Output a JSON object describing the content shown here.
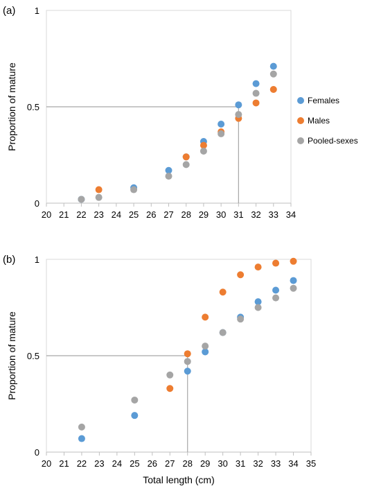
{
  "chart_data": [
    {
      "type": "scatter",
      "panel_label": "(a)",
      "xlabel": "",
      "ylabel": "Proportion of mature",
      "xlim": [
        20,
        34
      ],
      "ylim": [
        0,
        1
      ],
      "x_ticks": [
        20,
        21,
        22,
        23,
        24,
        25,
        26,
        27,
        28,
        29,
        30,
        31,
        32,
        33,
        34
      ],
      "y_ticks": [
        0,
        0.5,
        1
      ],
      "y_tick_labels": [
        "0",
        "0.5",
        "1"
      ],
      "grid": false,
      "legend": {
        "position": "right",
        "entries": [
          "Females",
          "Males",
          "Pooled-sexes"
        ]
      },
      "reference_lines": {
        "y": 0.5,
        "x": 31
      },
      "series": [
        {
          "name": "Females",
          "color": "#5B9BD5",
          "x": [
            22,
            25,
            27,
            28,
            29,
            30,
            31,
            32,
            33
          ],
          "y": [
            0.02,
            0.08,
            0.17,
            0.24,
            0.32,
            0.41,
            0.51,
            0.62,
            0.71
          ]
        },
        {
          "name": "Males",
          "color": "#ED7D31",
          "x": [
            23,
            28,
            29,
            30,
            31,
            32,
            33
          ],
          "y": [
            0.07,
            0.24,
            0.3,
            0.37,
            0.44,
            0.52,
            0.59
          ]
        },
        {
          "name": "Pooled-sexes",
          "color": "#A5A5A5",
          "x": [
            22,
            23,
            25,
            27,
            28,
            29,
            30,
            31,
            32,
            33
          ],
          "y": [
            0.02,
            0.03,
            0.07,
            0.14,
            0.2,
            0.27,
            0.36,
            0.46,
            0.57,
            0.67
          ]
        }
      ]
    },
    {
      "type": "scatter",
      "panel_label": "(b)",
      "xlabel": "Total length (cm)",
      "ylabel": "Proportion of mature",
      "xlim": [
        20,
        35
      ],
      "ylim": [
        0,
        1
      ],
      "x_ticks": [
        20,
        21,
        22,
        23,
        24,
        25,
        26,
        27,
        28,
        29,
        30,
        31,
        32,
        33,
        34,
        35
      ],
      "y_ticks": [
        0,
        0.5,
        1
      ],
      "y_tick_labels": [
        "0",
        "0.5",
        "1"
      ],
      "grid": false,
      "legend": null,
      "reference_lines": {
        "y": 0.5,
        "x": 28
      },
      "series": [
        {
          "name": "Females",
          "color": "#5B9BD5",
          "x": [
            22,
            25,
            28,
            29,
            30,
            31,
            32,
            33,
            34
          ],
          "y": [
            0.07,
            0.19,
            0.42,
            0.52,
            0.62,
            0.7,
            0.78,
            0.84,
            0.89
          ]
        },
        {
          "name": "Males",
          "color": "#ED7D31",
          "x": [
            27,
            28,
            29,
            30,
            31,
            32,
            33,
            34
          ],
          "y": [
            0.33,
            0.51,
            0.7,
            0.83,
            0.92,
            0.96,
            0.98,
            0.99
          ]
        },
        {
          "name": "Pooled-sexes",
          "color": "#A5A5A5",
          "x": [
            22,
            25,
            27,
            28,
            29,
            30,
            31,
            32,
            33,
            34
          ],
          "y": [
            0.13,
            0.27,
            0.4,
            0.47,
            0.55,
            0.62,
            0.69,
            0.75,
            0.8,
            0.85
          ]
        }
      ]
    }
  ]
}
